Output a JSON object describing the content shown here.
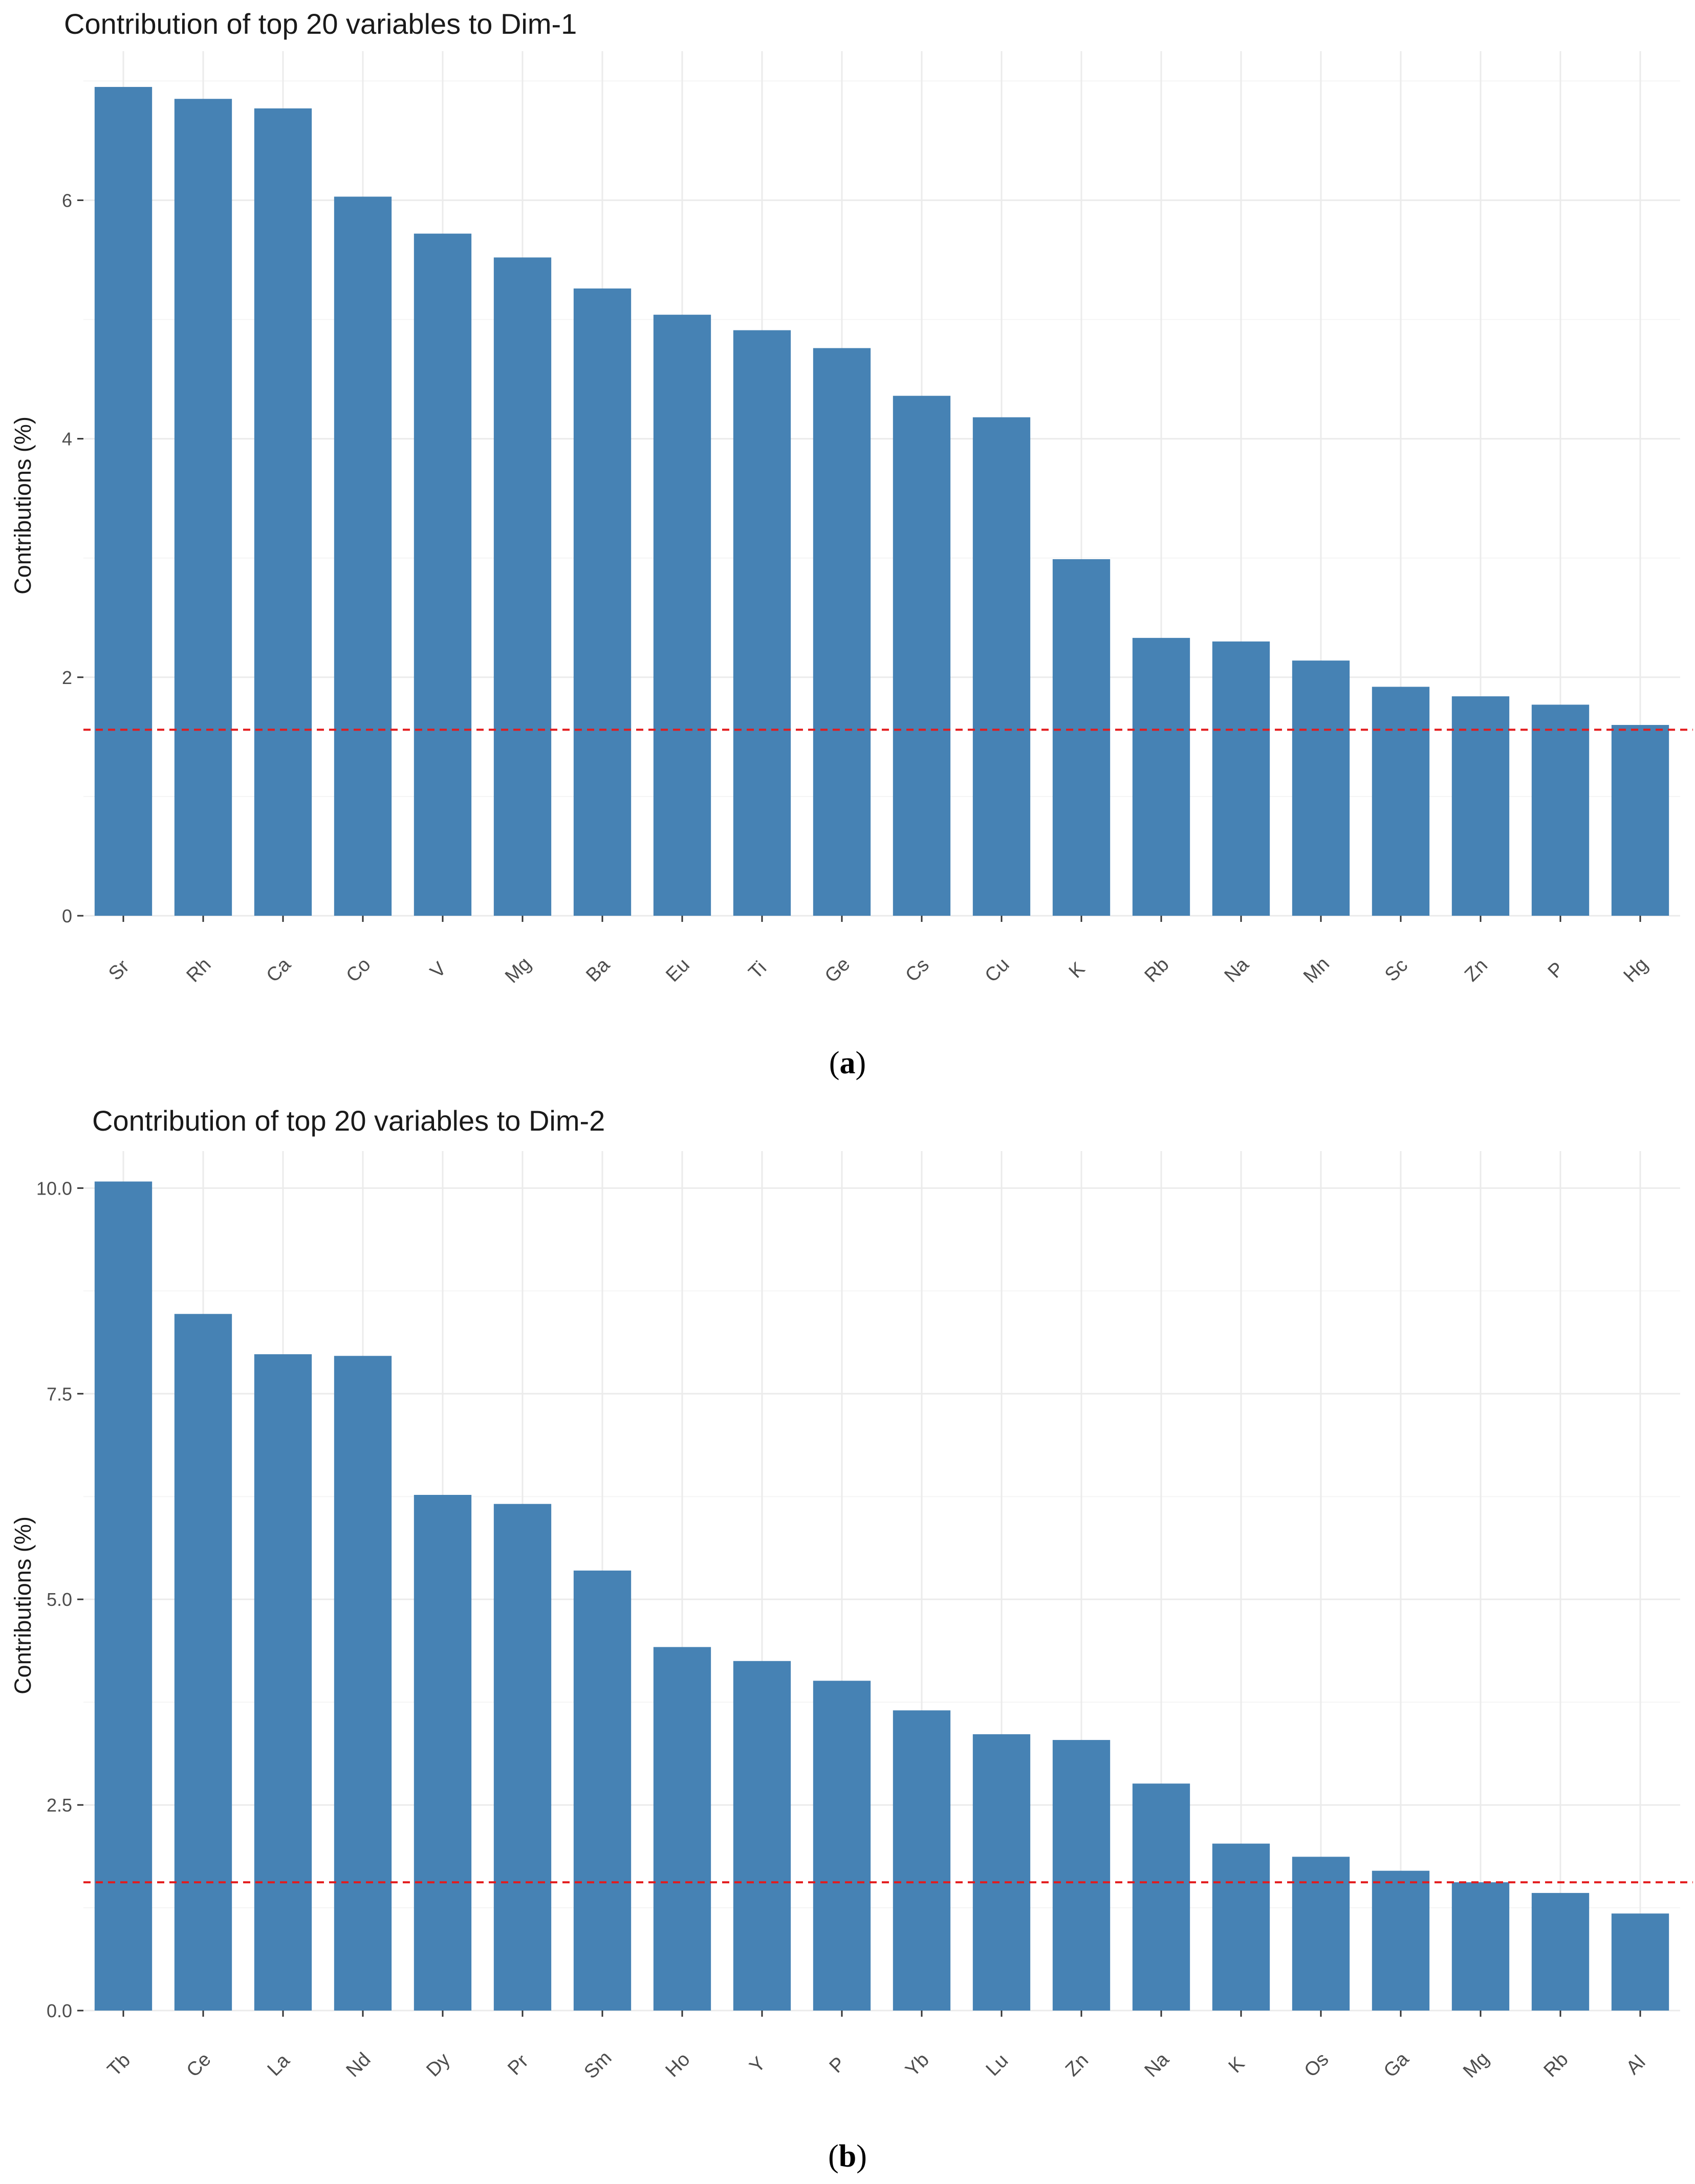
{
  "colors": {
    "bar": "#4682b4",
    "reference_line": "#e31a1c",
    "grid_major": "#ebebeb",
    "grid_minor": "#f5f5f5",
    "tick": "#333333"
  },
  "chart_data": [
    {
      "type": "bar",
      "panel": "a",
      "title": "Contribution of top 20 variables to Dim-1",
      "xlabel": "",
      "ylabel": "Contributions (%)",
      "ylim": [
        0,
        7.25
      ],
      "yticks": [
        0,
        2,
        4,
        6
      ],
      "ytick_labels": [
        "0",
        "2",
        "4",
        "6"
      ],
      "categories": [
        "Sr",
        "Rh",
        "Ca",
        "Co",
        "V",
        "Mg",
        "Ba",
        "Eu",
        "Ti",
        "Ge",
        "Cs",
        "Cu",
        "K",
        "Rb",
        "Na",
        "Mn",
        "Sc",
        "Zn",
        "P",
        "Hg"
      ],
      "values": [
        6.95,
        6.85,
        6.77,
        6.03,
        5.72,
        5.52,
        5.26,
        5.04,
        4.91,
        4.76,
        4.36,
        4.18,
        2.99,
        2.33,
        2.3,
        2.14,
        1.92,
        1.84,
        1.77,
        1.6
      ],
      "reference_line": 1.56,
      "caption_letter": "a"
    },
    {
      "type": "bar",
      "panel": "b",
      "title": "Contribution of top 20 variables to Dim-2",
      "xlabel": "",
      "ylabel": "Contributions (%)",
      "ylim": [
        0,
        10.45
      ],
      "yticks": [
        0,
        2.5,
        5,
        7.5,
        10
      ],
      "ytick_labels": [
        "0.0",
        "2.5",
        "5.0",
        "7.5",
        "10.0"
      ],
      "categories": [
        "Tb",
        "Ce",
        "La",
        "Nd",
        "Dy",
        "Pr",
        "Sm",
        "Ho",
        "Y",
        "P",
        "Yb",
        "Lu",
        "Zn",
        "Na",
        "K",
        "Os",
        "Ga",
        "Mg",
        "Rb",
        "Al"
      ],
      "values": [
        10.08,
        8.47,
        7.98,
        7.96,
        6.27,
        6.16,
        5.35,
        4.42,
        4.25,
        4.01,
        3.65,
        3.36,
        3.29,
        2.76,
        2.03,
        1.87,
        1.7,
        1.56,
        1.43,
        1.18
      ],
      "reference_line": 1.56,
      "caption_letter": "b"
    }
  ]
}
